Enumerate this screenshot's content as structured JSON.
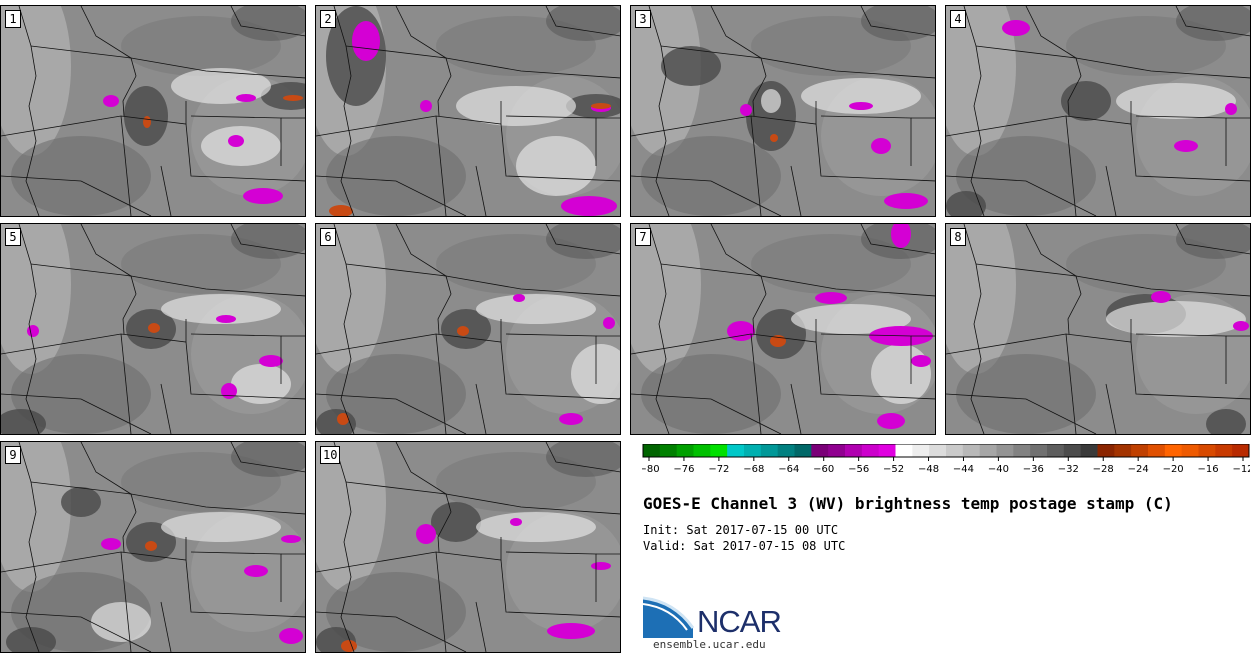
{
  "panels": [
    {
      "label": "1",
      "variant": 0
    },
    {
      "label": "2",
      "variant": 1
    },
    {
      "label": "3",
      "variant": 2
    },
    {
      "label": "4",
      "variant": 3
    },
    {
      "label": "5",
      "variant": 4
    },
    {
      "label": "6",
      "variant": 5
    },
    {
      "label": "7",
      "variant": 6
    },
    {
      "label": "8",
      "variant": 7
    },
    {
      "label": "9",
      "variant": 8
    },
    {
      "label": "10",
      "variant": 9
    }
  ],
  "colorbar": {
    "ticks": [
      "-80",
      "-76",
      "-72",
      "-68",
      "-64",
      "-60",
      "-56",
      "-52",
      "-48",
      "-44",
      "-40",
      "-36",
      "-32",
      "-28",
      "-24",
      "-20",
      "-16",
      "-12"
    ],
    "colors": [
      "#006400",
      "#008000",
      "#00a000",
      "#00c000",
      "#00e000",
      "#00c8c8",
      "#00b0b0",
      "#009898",
      "#008080",
      "#006868",
      "#7a0078",
      "#900090",
      "#b000b0",
      "#cc00cc",
      "#e000e0",
      "#ffffff",
      "#eeeeee",
      "#dcdcdc",
      "#cacaca",
      "#b8b8b8",
      "#a6a6a6",
      "#949494",
      "#828282",
      "#707070",
      "#5e5e5e",
      "#4c4c4c",
      "#3a3a3a",
      "#8b2500",
      "#a33300",
      "#c04000",
      "#e05000",
      "#ff6400",
      "#ee5a00",
      "#d84a00",
      "#c83a00",
      "#b82a00"
    ]
  },
  "title": "GOES-E Channel 3 (WV) brightness temp postage stamp (C)",
  "init_line": "Init: Sat 2017-07-15 00 UTC",
  "valid_line": "Valid: Sat 2017-07-15 08 UTC",
  "logo": {
    "name": "NCAR",
    "url": "ensemble.ucar.edu",
    "accent_color": "#1d6fb5"
  }
}
